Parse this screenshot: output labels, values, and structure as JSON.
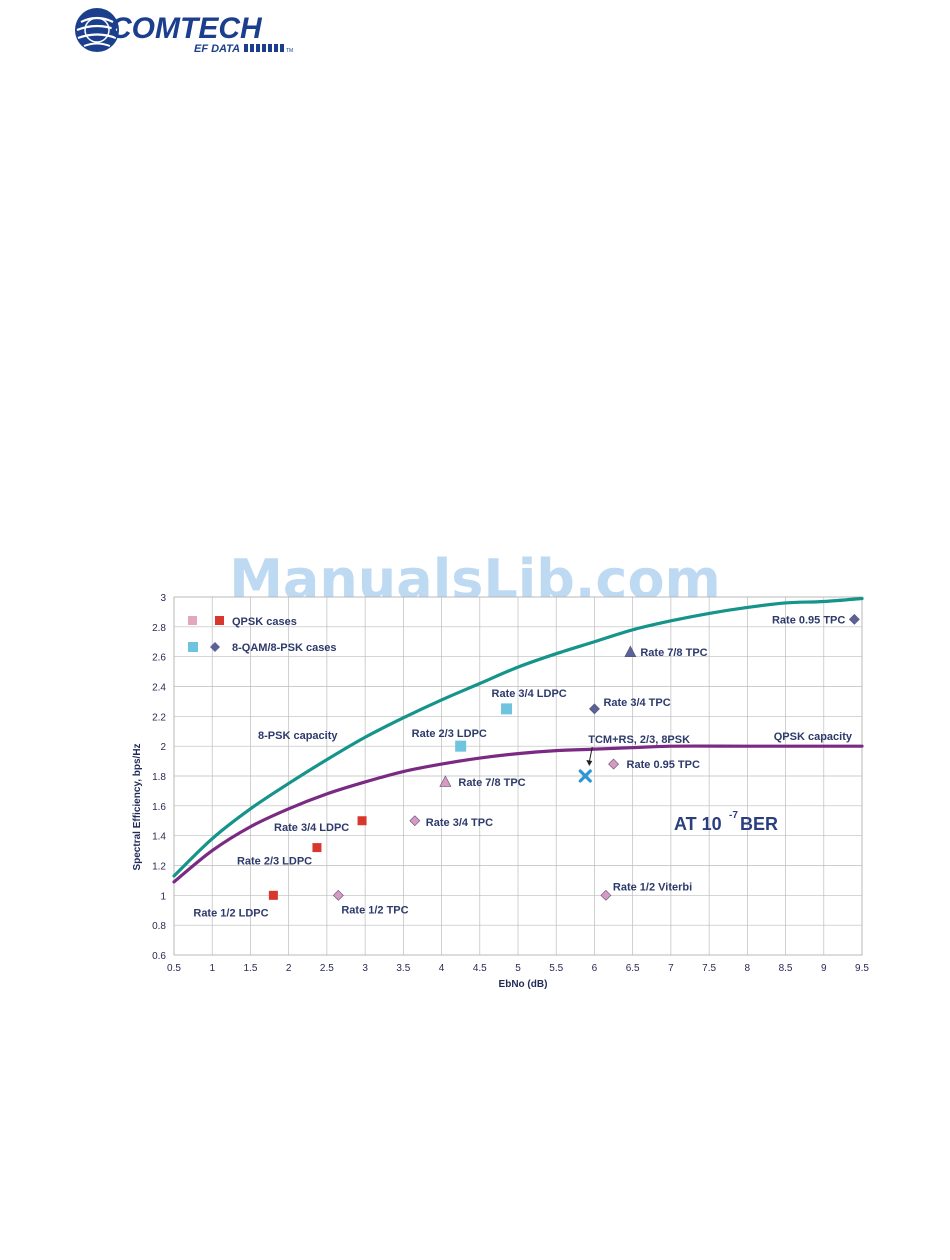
{
  "logo": {
    "main": "COMTECH",
    "sub": "EF DATA",
    "tm": "TM"
  },
  "watermark": "ManualsLib.com",
  "colors": {
    "qpsk_capacity": "#7b2a83",
    "psk8_capacity": "#14948a",
    "qpsk_case_pink": "#e2a6bf",
    "qpsk_case_red": "#d8372d",
    "qam_case_light_blue": "#6ec3df",
    "qam_case_dark_blue": "#5a6397",
    "tcm_cross": "#2d97d6",
    "lavender_marker": "#d89ac0"
  },
  "chart_data": {
    "type": "scatter",
    "xlabel": "EbNo (dB)",
    "ylabel": "Spectral Efficiency, bps/Hz",
    "xlim": [
      0.5,
      9.5
    ],
    "ylim": [
      0.6,
      3
    ],
    "x_ticks": [
      "0.5",
      "1",
      "1.5",
      "2",
      "2.5",
      "3",
      "3.5",
      "4",
      "4.5",
      "5",
      "5.5",
      "6",
      "6.5",
      "7",
      "7.5",
      "8",
      "8.5",
      "9",
      "9.5"
    ],
    "y_ticks": [
      "0.6",
      "0.8",
      "1",
      "1.2",
      "1.4",
      "1.6",
      "1.8",
      "2",
      "2.2",
      "2.4",
      "2.6",
      "2.8",
      "3"
    ],
    "grid": true,
    "legend": {
      "position": "top-left",
      "items": [
        {
          "label": "QPSK cases"
        },
        {
          "label": "8-QAM/8-PSK cases"
        }
      ]
    },
    "curves": [
      {
        "label": "8-PSK capacity",
        "points": [
          [
            0.5,
            1.13
          ],
          [
            1,
            1.38
          ],
          [
            1.5,
            1.58
          ],
          [
            2,
            1.75
          ],
          [
            2.5,
            1.91
          ],
          [
            3,
            2.06
          ],
          [
            3.5,
            2.19
          ],
          [
            4,
            2.31
          ],
          [
            4.5,
            2.42
          ],
          [
            5,
            2.53
          ],
          [
            5.5,
            2.62
          ],
          [
            6,
            2.7
          ],
          [
            6.5,
            2.78
          ],
          [
            7,
            2.84
          ],
          [
            7.5,
            2.89
          ],
          [
            8,
            2.93
          ],
          [
            8.5,
            2.96
          ],
          [
            9,
            2.97
          ],
          [
            9.5,
            2.99
          ]
        ]
      },
      {
        "label": "QPSK capacity",
        "points": [
          [
            0.5,
            1.09
          ],
          [
            1,
            1.3
          ],
          [
            1.5,
            1.46
          ],
          [
            2,
            1.58
          ],
          [
            2.5,
            1.68
          ],
          [
            3,
            1.76
          ],
          [
            3.5,
            1.83
          ],
          [
            4,
            1.88
          ],
          [
            4.5,
            1.92
          ],
          [
            5,
            1.95
          ],
          [
            5.5,
            1.97
          ],
          [
            6,
            1.98
          ],
          [
            6.5,
            1.99
          ],
          [
            7,
            2.0
          ],
          [
            8,
            2.0
          ],
          [
            9,
            2.0
          ],
          [
            9.5,
            2.0
          ]
        ]
      }
    ],
    "points": [
      {
        "label": "Rate 1/2  LDPC",
        "x": 1.8,
        "y": 1.0,
        "marker": "square-red"
      },
      {
        "label": "Rate 2/3  LDPC",
        "x": 2.37,
        "y": 1.32,
        "marker": "square-red"
      },
      {
        "label": "Rate 3/4  LDPC",
        "x": 2.96,
        "y": 1.5,
        "marker": "square-red"
      },
      {
        "label": "Rate 1/2  TPC",
        "x": 2.65,
        "y": 1.0,
        "marker": "diamond-lavender"
      },
      {
        "label": "Rate 3/4  TPC",
        "x": 3.65,
        "y": 1.5,
        "marker": "diamond-lavender"
      },
      {
        "label": "Rate 7/8  TPC",
        "x": 4.05,
        "y": 1.76,
        "marker": "triangle-lavender"
      },
      {
        "label": "Rate 2/3  LDPC",
        "x": 4.25,
        "y": 2.0,
        "marker": "square-light-blue"
      },
      {
        "label": "Rate 3/4  LDPC",
        "x": 4.85,
        "y": 2.25,
        "marker": "square-light-blue"
      },
      {
        "label": "TCM+RS, 2/3, 8PSK",
        "x": 5.88,
        "y": 1.8,
        "marker": "cross-blue"
      },
      {
        "label": "Rate 0.95  TPC",
        "x": 6.25,
        "y": 1.88,
        "marker": "diamond-lavender"
      },
      {
        "label": "Rate 1/2  Viterbi",
        "x": 6.15,
        "y": 1.0,
        "marker": "diamond-lavender"
      },
      {
        "label": "Rate 3/4  TPC",
        "x": 6.0,
        "y": 2.25,
        "marker": "diamond-dark-blue"
      },
      {
        "label": "Rate 7/8  TPC",
        "x": 6.47,
        "y": 2.63,
        "marker": "triangle-dark-blue"
      },
      {
        "label": "Rate 0.95  TPC",
        "x": 9.4,
        "y": 2.85,
        "marker": "diamond-dark-blue"
      }
    ],
    "annotations": {
      "ber_main": "AT  10",
      "ber_exponent": "-7",
      "ber_suffix": "BER"
    }
  }
}
